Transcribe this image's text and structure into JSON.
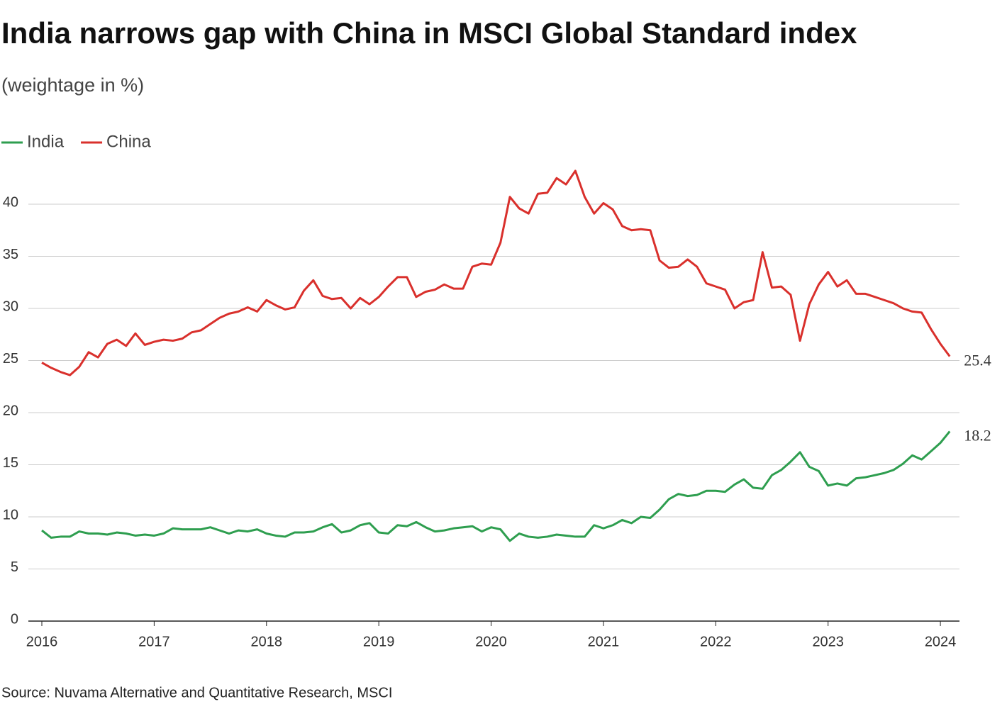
{
  "chart_data": {
    "type": "line",
    "title": "India narrows gap with China in MSCI Global Standard index",
    "subtitle": "(weightage in %)",
    "source": "Source: Nuvama Alternative and Quantitative Research, MSCI",
    "x": [
      2016,
      2016.083,
      2016.167,
      2016.25,
      2016.333,
      2016.417,
      2016.5,
      2016.583,
      2016.667,
      2016.75,
      2016.833,
      2016.917,
      2017,
      2017.083,
      2017.167,
      2017.25,
      2017.333,
      2017.417,
      2017.5,
      2017.583,
      2017.667,
      2017.75,
      2017.833,
      2017.917,
      2018,
      2018.083,
      2018.167,
      2018.25,
      2018.333,
      2018.417,
      2018.5,
      2018.583,
      2018.667,
      2018.75,
      2018.833,
      2018.917,
      2019,
      2019.083,
      2019.167,
      2019.25,
      2019.333,
      2019.417,
      2019.5,
      2019.583,
      2019.667,
      2019.75,
      2019.833,
      2019.917,
      2020,
      2020.083,
      2020.167,
      2020.25,
      2020.333,
      2020.417,
      2020.5,
      2020.583,
      2020.667,
      2020.75,
      2020.833,
      2020.917,
      2021,
      2021.083,
      2021.167,
      2021.25,
      2021.333,
      2021.417,
      2021.5,
      2021.583,
      2021.667,
      2021.75,
      2021.833,
      2021.917,
      2022,
      2022.083,
      2022.167,
      2022.25,
      2022.333,
      2022.417,
      2022.5,
      2022.583,
      2022.667,
      2022.75,
      2022.833,
      2022.917,
      2023,
      2023.083,
      2023.167,
      2023.25,
      2023.333,
      2023.417,
      2023.5,
      2023.583,
      2023.667,
      2023.75,
      2023.833,
      2023.917,
      2024,
      2024.083
    ],
    "series": [
      {
        "name": "India",
        "color": "#2e9e4f",
        "values": [
          8.7,
          8.0,
          8.1,
          8.1,
          8.6,
          8.4,
          8.4,
          8.3,
          8.5,
          8.4,
          8.2,
          8.3,
          8.2,
          8.4,
          8.9,
          8.8,
          8.8,
          8.8,
          9.0,
          8.7,
          8.4,
          8.7,
          8.6,
          8.8,
          8.4,
          8.2,
          8.1,
          8.5,
          8.5,
          8.6,
          9.0,
          9.3,
          8.5,
          8.7,
          9.2,
          9.4,
          8.5,
          8.4,
          9.2,
          9.1,
          9.5,
          9.0,
          8.6,
          8.7,
          8.9,
          9.0,
          9.1,
          8.6,
          9.0,
          8.8,
          7.7,
          8.4,
          8.1,
          8.0,
          8.1,
          8.3,
          8.2,
          8.1,
          8.1,
          9.2,
          8.9,
          9.2,
          9.7,
          9.4,
          10.0,
          9.9,
          10.7,
          11.7,
          12.2,
          12.0,
          12.1,
          12.5,
          12.5,
          12.4,
          13.1,
          13.6,
          12.8,
          12.7,
          14.0,
          14.5,
          15.3,
          16.2,
          14.8,
          14.4,
          13.0,
          13.2,
          13.0,
          13.7,
          13.8,
          14.0,
          14.2,
          14.5,
          15.1,
          15.9,
          15.5,
          16.3,
          17.1,
          18.2
        ]
      },
      {
        "name": "China",
        "color": "#d9302c",
        "values": [
          24.8,
          24.3,
          23.9,
          23.6,
          24.4,
          25.8,
          25.3,
          26.6,
          27.0,
          26.4,
          27.6,
          26.5,
          26.8,
          27.0,
          26.9,
          27.1,
          27.7,
          27.9,
          28.5,
          29.1,
          29.5,
          29.7,
          30.1,
          29.7,
          30.8,
          30.3,
          29.9,
          30.1,
          31.7,
          32.7,
          31.2,
          30.9,
          31.0,
          30.0,
          31.0,
          30.4,
          31.1,
          32.1,
          33.0,
          33.0,
          31.1,
          31.6,
          31.8,
          32.3,
          31.9,
          31.9,
          34.0,
          34.3,
          34.2,
          36.3,
          40.7,
          39.6,
          39.1,
          41.0,
          41.1,
          42.5,
          41.9,
          43.2,
          40.7,
          39.1,
          40.1,
          39.5,
          37.9,
          37.5,
          37.6,
          37.5,
          34.6,
          33.9,
          34.0,
          34.7,
          34.0,
          32.4,
          32.1,
          31.8,
          30.0,
          30.6,
          30.8,
          35.4,
          32.0,
          32.1,
          31.3,
          26.9,
          30.4,
          32.3,
          33.5,
          32.1,
          32.7,
          31.4,
          31.4,
          31.1,
          30.8,
          30.5,
          30.0,
          29.7,
          29.6,
          28.0,
          26.6,
          25.4
        ]
      }
    ],
    "xlim": [
      2015.88,
      2024.17
    ],
    "xticks": [
      2016,
      2017,
      2018,
      2019,
      2020,
      2021,
      2022,
      2023,
      2024
    ],
    "ylim": [
      0,
      45
    ],
    "yticks": [
      0,
      5,
      10,
      15,
      20,
      25,
      30,
      35,
      40
    ],
    "grid": true,
    "legend": "top-left"
  }
}
